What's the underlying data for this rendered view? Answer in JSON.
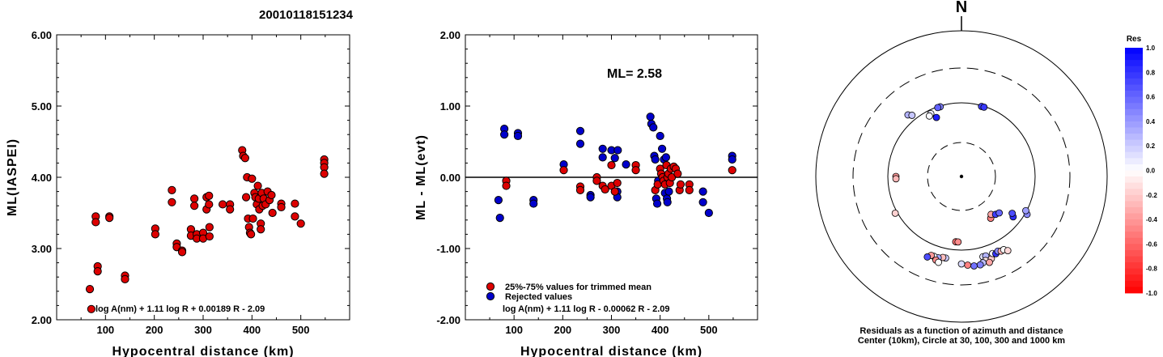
{
  "event_id": "20010118151234",
  "colors": {
    "red": "#dd0000",
    "blue": "#0000cc",
    "line": "#000000"
  },
  "chart_data": [
    {
      "type": "scatter",
      "title": "20010118151234",
      "xlabel": "Hypocentral distance (km)",
      "ylabel": "ML(IASPEI)",
      "xlim": [
        0,
        600
      ],
      "ylim": [
        2.0,
        6.0
      ],
      "xticks": [
        "100",
        "200",
        "300",
        "400",
        "500"
      ],
      "yticks": [
        "2.00",
        "3.00",
        "4.00",
        "5.00",
        "6.00"
      ],
      "formula": "log A(nm) + 1.11 log R + 0.00189 R - 2.09",
      "points": [
        [
          68,
          2.43
        ],
        [
          71,
          2.15
        ],
        [
          80,
          3.45
        ],
        [
          80,
          3.37
        ],
        [
          84,
          2.75
        ],
        [
          84,
          2.68
        ],
        [
          108,
          3.45
        ],
        [
          108,
          3.43
        ],
        [
          140,
          2.62
        ],
        [
          140,
          2.57
        ],
        [
          202,
          3.28
        ],
        [
          202,
          3.2
        ],
        [
          236,
          3.82
        ],
        [
          236,
          3.65
        ],
        [
          246,
          3.07
        ],
        [
          246,
          3.02
        ],
        [
          257,
          2.97
        ],
        [
          257,
          2.95
        ],
        [
          275,
          3.27
        ],
        [
          275,
          3.18
        ],
        [
          282,
          3.7
        ],
        [
          282,
          3.6
        ],
        [
          287,
          3.2
        ],
        [
          287,
          3.14
        ],
        [
          300,
          3.22
        ],
        [
          300,
          3.14
        ],
        [
          307,
          3.72
        ],
        [
          307,
          3.55
        ],
        [
          312,
          3.74
        ],
        [
          312,
          3.62
        ],
        [
          313,
          3.3
        ],
        [
          313,
          3.17
        ],
        [
          340,
          3.62
        ],
        [
          355,
          3.62
        ],
        [
          355,
          3.55
        ],
        [
          380,
          4.38
        ],
        [
          382,
          4.3
        ],
        [
          386,
          4.27
        ],
        [
          388,
          3.72
        ],
        [
          390,
          4.0
        ],
        [
          392,
          3.42
        ],
        [
          394,
          3.3
        ],
        [
          396,
          3.22
        ],
        [
          398,
          3.2
        ],
        [
          400,
          3.98
        ],
        [
          402,
          3.42
        ],
        [
          405,
          3.78
        ],
        [
          407,
          3.72
        ],
        [
          410,
          3.62
        ],
        [
          412,
          3.88
        ],
        [
          414,
          3.7
        ],
        [
          415,
          3.55
        ],
        [
          418,
          3.35
        ],
        [
          418,
          3.27
        ],
        [
          420,
          3.78
        ],
        [
          422,
          3.6
        ],
        [
          424,
          3.7
        ],
        [
          428,
          3.62
        ],
        [
          432,
          3.8
        ],
        [
          436,
          3.68
        ],
        [
          440,
          3.75
        ],
        [
          442,
          3.5
        ],
        [
          460,
          3.63
        ],
        [
          460,
          3.58
        ],
        [
          488,
          3.63
        ],
        [
          488,
          3.45
        ],
        [
          500,
          3.35
        ],
        [
          548,
          4.25
        ],
        [
          548,
          4.2
        ],
        [
          548,
          4.14
        ],
        [
          548,
          4.05
        ]
      ]
    },
    {
      "type": "scatter",
      "xlabel": "Hypocentral distance (km)",
      "ylabel": "ML - ML(evt)",
      "xlim": [
        0,
        600
      ],
      "ylim": [
        -2.0,
        2.0
      ],
      "xticks": [
        "100",
        "200",
        "300",
        "400",
        "500"
      ],
      "yticks": [
        "-2.00",
        "-1.00",
        "0.00",
        "1.00",
        "2.00"
      ],
      "ml_label": "ML= 2.58",
      "legend": [
        "25%-75% values for trimmed mean",
        "Rejected values"
      ],
      "formula": "log A(nm) + 1.11 log R - 0.00062 R - 2.09",
      "trimmed": [
        [
          84,
          -0.05
        ],
        [
          84,
          -0.12
        ],
        [
          202,
          0.1
        ],
        [
          236,
          -0.13
        ],
        [
          236,
          -0.18
        ],
        [
          270,
          0.0
        ],
        [
          270,
          -0.05
        ],
        [
          282,
          -0.12
        ],
        [
          287,
          -0.17
        ],
        [
          300,
          -0.12
        ],
        [
          300,
          0.17
        ],
        [
          307,
          -0.2
        ],
        [
          312,
          -0.08
        ],
        [
          350,
          0.17
        ],
        [
          350,
          0.1
        ],
        [
          390,
          -0.18
        ],
        [
          395,
          -0.1
        ],
        [
          400,
          0.12
        ],
        [
          402,
          0.05
        ],
        [
          405,
          0.0
        ],
        [
          407,
          -0.05
        ],
        [
          410,
          -0.1
        ],
        [
          413,
          0.17
        ],
        [
          415,
          0.0
        ],
        [
          417,
          0.05
        ],
        [
          420,
          -0.08
        ],
        [
          422,
          0.12
        ],
        [
          424,
          0.0
        ],
        [
          428,
          0.15
        ],
        [
          432,
          0.12
        ],
        [
          436,
          0.05
        ],
        [
          440,
          -0.18
        ],
        [
          442,
          -0.1
        ],
        [
          460,
          -0.1
        ],
        [
          460,
          -0.18
        ],
        [
          548,
          0.1
        ]
      ],
      "rejected": [
        [
          68,
          -0.32
        ],
        [
          71,
          -0.57
        ],
        [
          80,
          0.68
        ],
        [
          80,
          0.6
        ],
        [
          108,
          0.62
        ],
        [
          108,
          0.58
        ],
        [
          140,
          -0.32
        ],
        [
          140,
          -0.37
        ],
        [
          202,
          0.18
        ],
        [
          236,
          0.65
        ],
        [
          236,
          0.47
        ],
        [
          257,
          -0.25
        ],
        [
          257,
          -0.28
        ],
        [
          282,
          0.4
        ],
        [
          282,
          0.28
        ],
        [
          300,
          0.38
        ],
        [
          307,
          0.27
        ],
        [
          312,
          -0.2
        ],
        [
          312,
          -0.28
        ],
        [
          313,
          0.38
        ],
        [
          330,
          0.18
        ],
        [
          380,
          0.85
        ],
        [
          382,
          0.75
        ],
        [
          386,
          0.7
        ],
        [
          388,
          0.3
        ],
        [
          390,
          0.25
        ],
        [
          392,
          -0.3
        ],
        [
          394,
          -0.37
        ],
        [
          396,
          -0.05
        ],
        [
          400,
          0.58
        ],
        [
          404,
          0.4
        ],
        [
          408,
          0.25
        ],
        [
          410,
          -0.22
        ],
        [
          412,
          0.28
        ],
        [
          414,
          -0.3
        ],
        [
          415,
          -0.35
        ],
        [
          418,
          -0.2
        ],
        [
          488,
          -0.2
        ],
        [
          488,
          -0.35
        ],
        [
          500,
          -0.5
        ],
        [
          548,
          0.3
        ],
        [
          548,
          0.25
        ]
      ]
    },
    {
      "type": "scatter",
      "subtype": "polar",
      "north_label": "N",
      "caption": [
        "Residuals as a function of azimuth and distance",
        "Center (10km), Circle at 30, 100, 300 and 1000 km"
      ],
      "colorbar": {
        "title": "Res",
        "ticks": [
          "1.0",
          "0.8",
          "0.6",
          "0.4",
          "0.2",
          "0.0",
          "-0.2",
          "-0.4",
          "-0.6",
          "-0.8",
          "-1.0"
        ]
      },
      "points": [
        {
          "az": 16,
          "r": 0.5,
          "res": 0.75
        },
        {
          "az": 18,
          "r": 0.5,
          "res": 0.78
        },
        {
          "az": 343,
          "r": 0.5,
          "res": 0.5
        },
        {
          "az": 341,
          "r": 0.5,
          "res": 0.62
        },
        {
          "az": 319,
          "r": 0.56,
          "res": 0.3
        },
        {
          "az": 321,
          "r": 0.54,
          "res": 0.22
        },
        {
          "az": 334,
          "r": 0.48,
          "res": 0.08
        },
        {
          "az": 332,
          "r": 0.47,
          "res": 0.02
        },
        {
          "az": 337,
          "r": 0.44,
          "res": 0.88
        },
        {
          "az": 270,
          "r": 0.45,
          "res": -0.4
        },
        {
          "az": 268,
          "r": 0.45,
          "res": -0.28
        },
        {
          "az": 241,
          "r": 0.52,
          "res": -0.18
        },
        {
          "az": 145,
          "r": 0.35,
          "res": -0.5
        },
        {
          "az": 142,
          "r": 0.33,
          "res": -0.35
        },
        {
          "az": 138,
          "r": 0.35,
          "res": 0.75
        },
        {
          "az": 134,
          "r": 0.36,
          "res": 0.6
        },
        {
          "az": 128,
          "r": 0.45,
          "res": 0.82
        },
        {
          "az": 126,
          "r": 0.43,
          "res": 0.7
        },
        {
          "az": 120,
          "r": 0.52,
          "res": 0.45
        },
        {
          "az": 118,
          "r": 0.5,
          "res": 0.38
        },
        {
          "az": 185,
          "r": 0.45,
          "res": -0.55
        },
        {
          "az": 183,
          "r": 0.45,
          "res": -0.45
        },
        {
          "az": 165,
          "r": 0.57,
          "res": 0.1
        },
        {
          "az": 163,
          "r": 0.57,
          "res": 0.3
        },
        {
          "az": 160,
          "r": 0.6,
          "res": -0.2
        },
        {
          "az": 158,
          "r": 0.57,
          "res": 0.05
        },
        {
          "az": 156,
          "r": 0.58,
          "res": 0.8
        },
        {
          "az": 154,
          "r": 0.57,
          "res": 0.45
        },
        {
          "az": 152,
          "r": 0.58,
          "res": -0.3
        },
        {
          "az": 150,
          "r": 0.58,
          "res": 0.0
        },
        {
          "az": 148,
          "r": 0.6,
          "res": -0.15
        },
        {
          "az": 164,
          "r": 0.6,
          "res": -0.1
        },
        {
          "az": 166,
          "r": 0.61,
          "res": 0.25
        },
        {
          "az": 162,
          "r": 0.62,
          "res": -0.35
        },
        {
          "az": 168,
          "r": 0.62,
          "res": 0.5
        },
        {
          "az": 191,
          "r": 0.57,
          "res": 0.2
        },
        {
          "az": 193,
          "r": 0.57,
          "res": -0.25
        },
        {
          "az": 196,
          "r": 0.58,
          "res": 0.35
        },
        {
          "az": 199,
          "r": 0.58,
          "res": 0.05
        },
        {
          "az": 201,
          "r": 0.58,
          "res": -0.4
        },
        {
          "az": 203,
          "r": 0.6,
          "res": 0.7
        },
        {
          "az": 197,
          "r": 0.6,
          "res": -0.45
        },
        {
          "az": 195,
          "r": 0.61,
          "res": 0.0
        },
        {
          "az": 172,
          "r": 0.62,
          "res": 0.55
        },
        {
          "az": 176,
          "r": 0.61,
          "res": -0.5
        },
        {
          "az": 180,
          "r": 0.6,
          "res": 0.15
        }
      ]
    }
  ]
}
